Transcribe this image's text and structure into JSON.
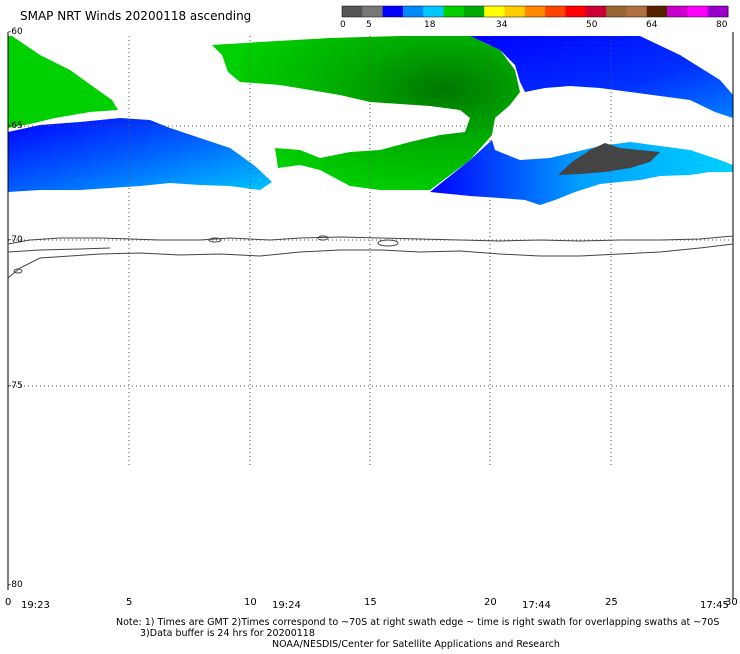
{
  "title": "SMAP NRT Winds 20200118 ascending",
  "colorbar": {
    "ticks": [
      "0",
      "5",
      "18",
      "34",
      "50",
      "64",
      "80"
    ],
    "colors": [
      "#555555",
      "#777777",
      "#0000ff",
      "#0088ff",
      "#00c8ff",
      "#00d000",
      "#00aa00",
      "#ffff00",
      "#ffcc00",
      "#ff8800",
      "#ff4400",
      "#ff0000",
      "#cc0033",
      "#996633",
      "#b07040",
      "#552200",
      "#cc00cc",
      "#ff00ff",
      "#9900cc"
    ]
  },
  "y_axis": {
    "labels": [
      "-60",
      "-65",
      "-70",
      "-75",
      "-80"
    ]
  },
  "x_axis": {
    "labels": [
      "0",
      "5",
      "10",
      "15",
      "20",
      "25",
      "30"
    ]
  },
  "times": [
    "19:23",
    "19:24",
    "17:44",
    "17:45"
  ],
  "note": {
    "line1": "Note: 1) Times are GMT 2)Times correspond to ~70S at right swath edge ~ time is right swath for overlapping swaths at ~70S",
    "line2": "3)Data buffer is 24 hrs for 20200118",
    "credit": "NOAA/NESDIS/Center for Satellite Applications and Research"
  },
  "legend_colors": {
    "green_dark": "#008800",
    "green": "#00d000",
    "blue": "#0000ff",
    "cyan": "#00c8ff",
    "dark_gray": "#444444"
  }
}
